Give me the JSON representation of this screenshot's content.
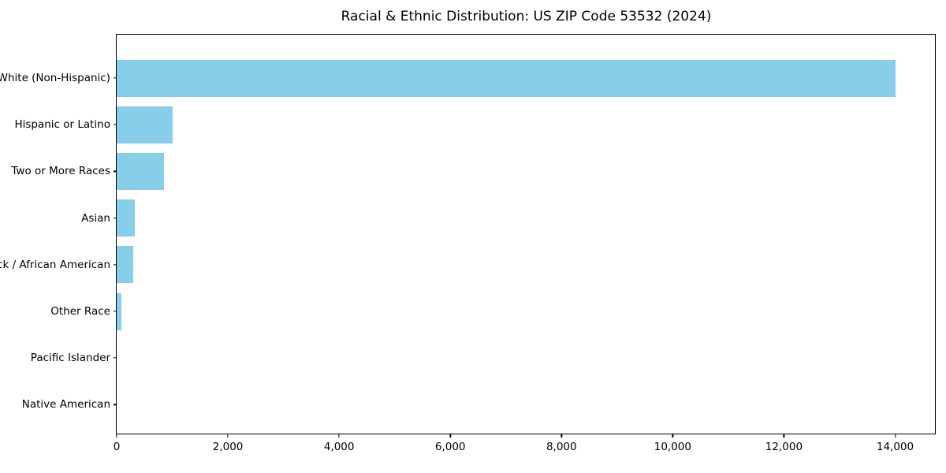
{
  "chart_data": {
    "type": "bar",
    "orientation": "horizontal",
    "title": "Racial & Ethnic Distribution: US ZIP Code 53532 (2024)",
    "categories": [
      "White (Non-Hispanic)",
      "Hispanic or Latino",
      "Two or More Races",
      "Asian",
      "Black / African American",
      "Other Race",
      "Pacific Islander",
      "Native American"
    ],
    "values": [
      14000,
      1000,
      850,
      320,
      300,
      80,
      0,
      0
    ],
    "xlabel": "",
    "ylabel": "",
    "xlim": [
      0,
      14730
    ],
    "xticks": [
      0,
      2000,
      4000,
      6000,
      8000,
      10000,
      12000,
      14000
    ],
    "bar_color": "#87CEEB",
    "background_color": "#ffffff",
    "text_color": "#000000",
    "axis_color": "#000000",
    "grid": false,
    "legend": null
  }
}
